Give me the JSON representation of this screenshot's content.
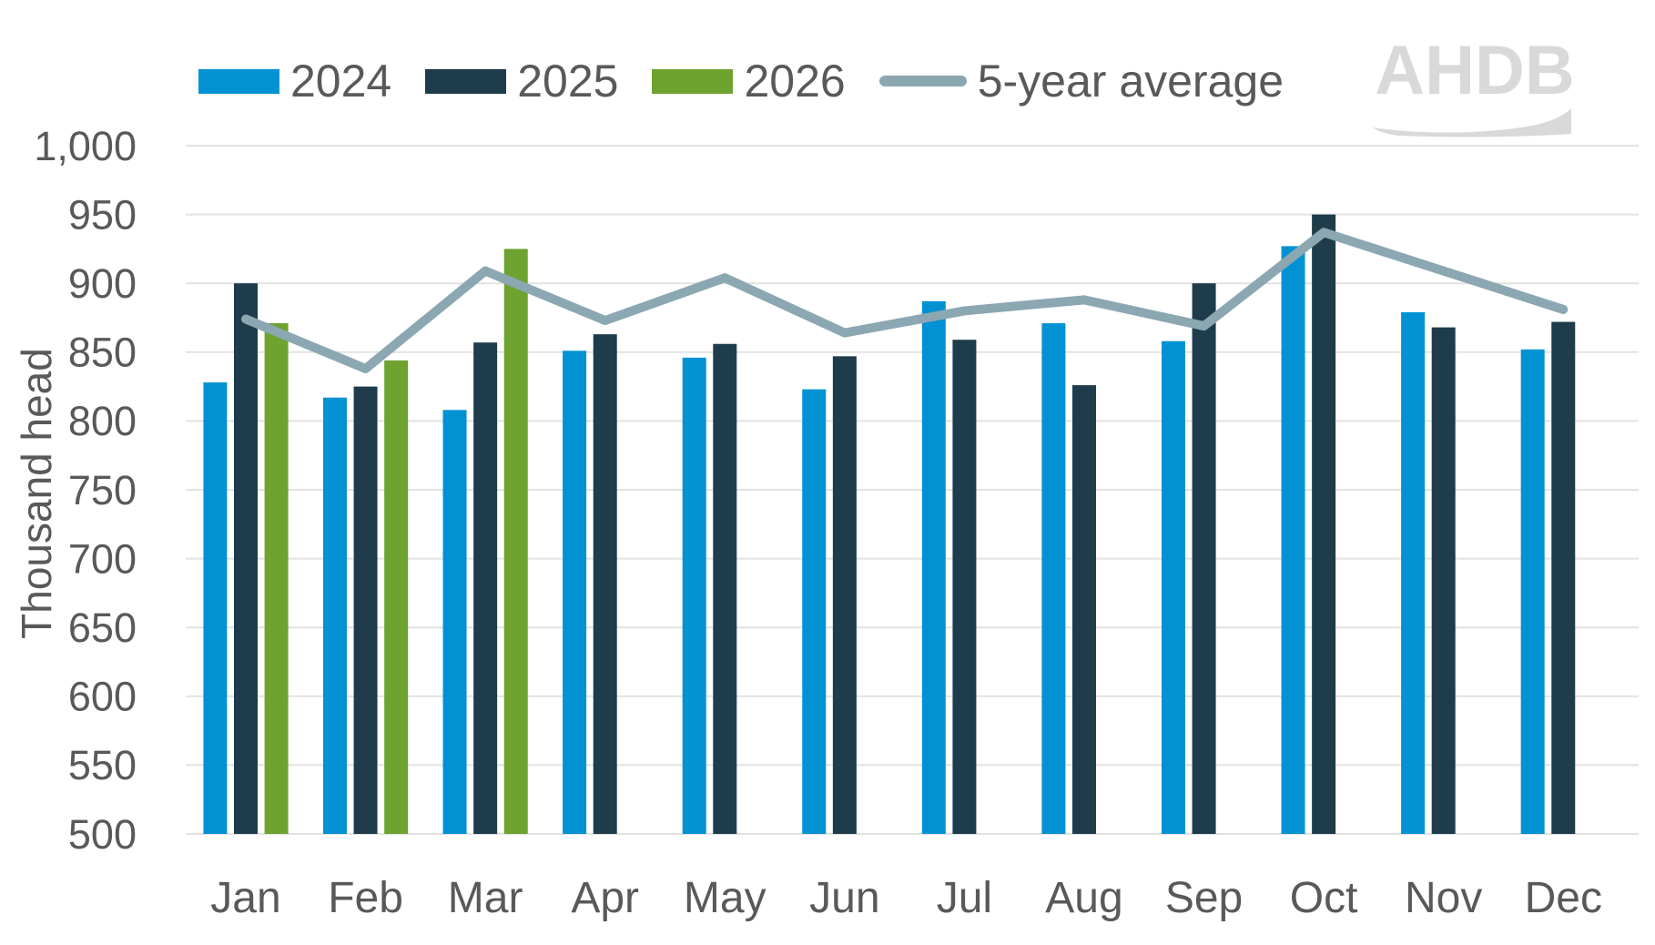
{
  "y_axis": {
    "title": "Thousand head",
    "ticks": [
      "1,000",
      "950",
      "900",
      "850",
      "800",
      "750",
      "700",
      "650",
      "600",
      "550",
      "500"
    ]
  },
  "logo": {
    "text": "AHDB"
  },
  "colors": {
    "bar_2024": "#0292d4",
    "bar_2025": "#1e3c4b",
    "bar_2026": "#6ea32f",
    "line_avg": "#8ba7b2",
    "axis_text": "#595959",
    "gridline": "#e2e2e2",
    "logo_gray": "#d9d9d9"
  },
  "chart_data": {
    "type": "bar",
    "subtype": "grouped bars with overlay line",
    "categories": [
      "Jan",
      "Feb",
      "Mar",
      "Apr",
      "May",
      "Jun",
      "Jul",
      "Aug",
      "Sep",
      "Oct",
      "Nov",
      "Dec"
    ],
    "series": [
      {
        "name": "2024",
        "type": "bar",
        "color": "#0292d4",
        "values": [
          828,
          817,
          808,
          851,
          846,
          823,
          887,
          871,
          858,
          927,
          879,
          852
        ]
      },
      {
        "name": "2025",
        "type": "bar",
        "color": "#1e3c4b",
        "values": [
          900,
          825,
          857,
          863,
          856,
          847,
          859,
          826,
          900,
          950,
          868,
          872
        ]
      },
      {
        "name": "2026",
        "type": "bar",
        "color": "#6ea32f",
        "values": [
          871,
          844,
          925,
          null,
          null,
          null,
          null,
          null,
          null,
          null,
          null,
          null
        ]
      },
      {
        "name": "5-year average",
        "type": "line",
        "color": "#8ba7b2",
        "values": [
          874,
          838,
          909,
          873,
          904,
          864,
          880,
          888,
          869,
          937,
          909,
          881
        ]
      }
    ],
    "title": "",
    "xlabel": "",
    "ylabel": "Thousand head",
    "ylim": [
      500,
      1000
    ],
    "ytick_step": 50,
    "grid": true,
    "legend_position": "top-left"
  }
}
